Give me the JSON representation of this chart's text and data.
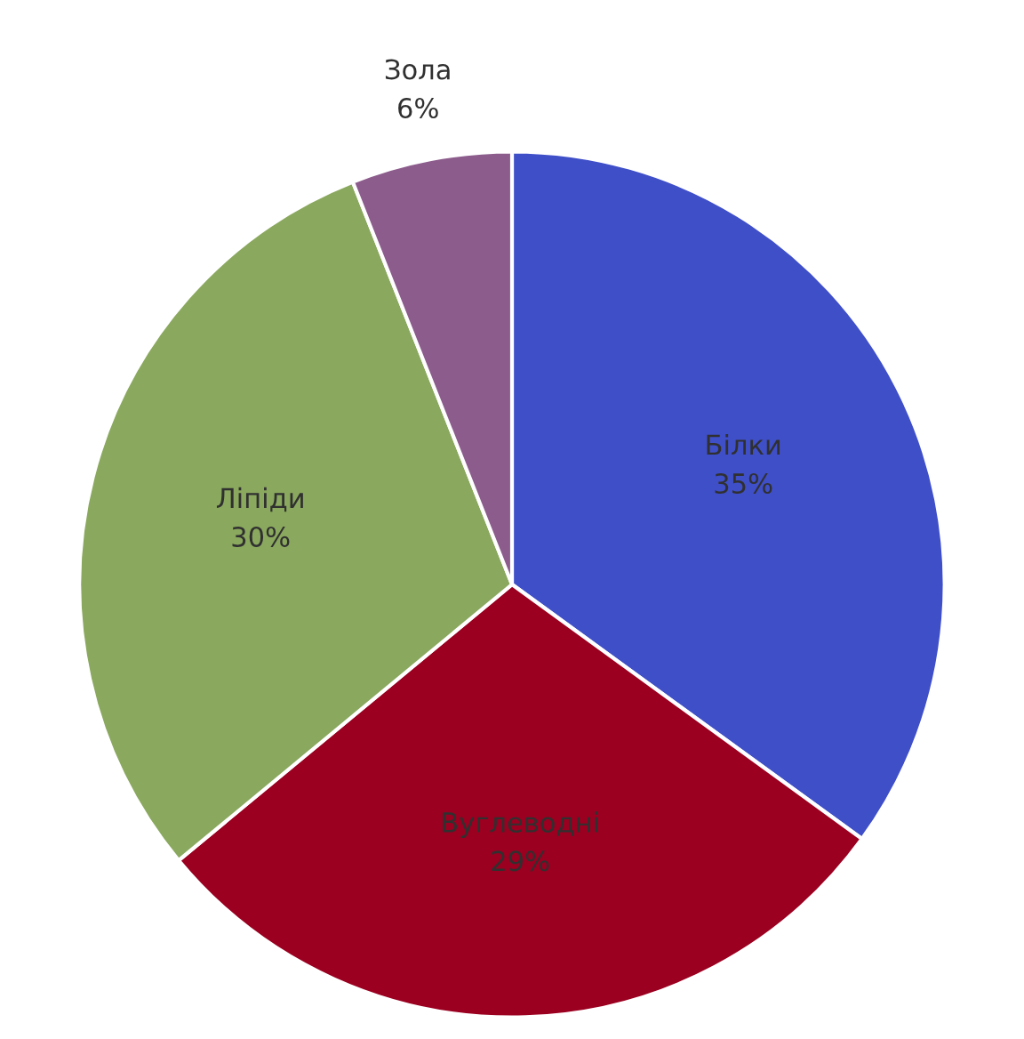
{
  "chart_data": {
    "type": "pie",
    "categories": [
      "Білки",
      "Вуглеводні",
      "Ліпіди",
      "Зола"
    ],
    "values": [
      35,
      29,
      30,
      6
    ],
    "value_labels": [
      "35%",
      "29%",
      "30%",
      "6%"
    ],
    "colors": [
      "#3f4fc8",
      "#9b0020",
      "#8aa85e",
      "#8c5c8c"
    ]
  }
}
